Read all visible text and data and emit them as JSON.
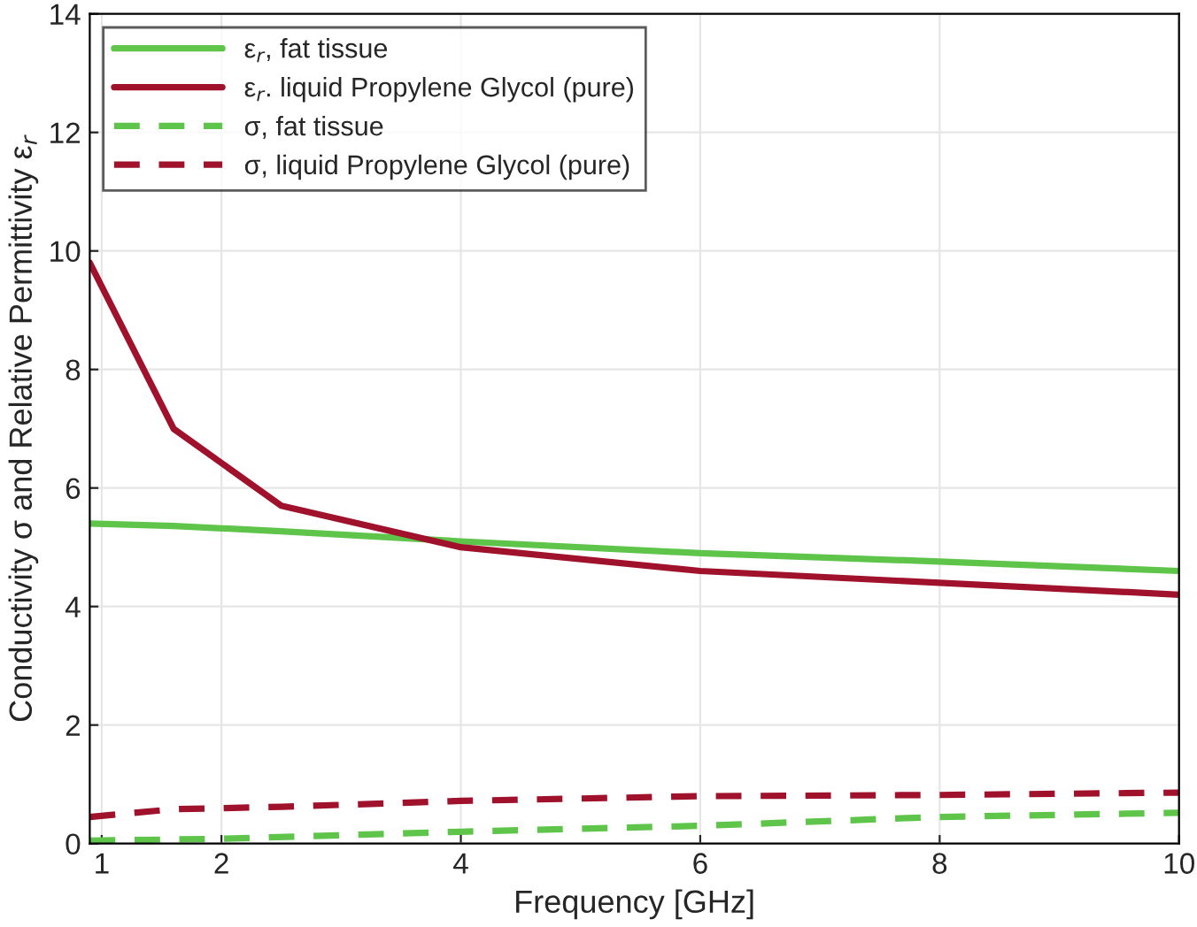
{
  "chart_data": {
    "type": "line",
    "xlabel": "Frequency [GHz]",
    "ylabel": "Conductivity σ and Relative Permittivity ε$_{r}$",
    "xlim": [
      0.9,
      10
    ],
    "xticks": [
      1,
      2,
      4,
      6,
      8,
      10
    ],
    "ylim": [
      0,
      14
    ],
    "yticks": [
      0,
      2,
      4,
      6,
      8,
      10,
      12,
      14
    ],
    "grid": true,
    "legend": "top left",
    "series": [
      {
        "name": "ε$_{r}$, fat tissue",
        "color": "#5ec44a",
        "line_style": "solid",
        "x": [
          0.9,
          1.6,
          2.5,
          4,
          6,
          8,
          10
        ],
        "values": [
          5.4,
          5.36,
          5.27,
          5.1,
          4.9,
          4.76,
          4.6
        ]
      },
      {
        "name": "ε$_{r}$. liquid Propylene Glycol (pure)",
        "color": "#a0112b",
        "line_style": "solid",
        "x": [
          0.9,
          1.6,
          2.5,
          4,
          6,
          8,
          10
        ],
        "values": [
          9.8,
          7.0,
          5.7,
          5.0,
          4.6,
          4.4,
          4.2
        ]
      },
      {
        "name": "σ, fat tissue",
        "color": "#5ec44a",
        "line_style": "dashed",
        "x": [
          0.9,
          2,
          4,
          6,
          8,
          10
        ],
        "values": [
          0.05,
          0.08,
          0.2,
          0.3,
          0.45,
          0.52
        ]
      },
      {
        "name": "σ, liquid Propylene Glycol (pure)",
        "color": "#a0112b",
        "line_style": "dashed",
        "x": [
          0.9,
          1.6,
          2.5,
          4,
          6,
          8,
          10
        ],
        "values": [
          0.45,
          0.58,
          0.62,
          0.72,
          0.8,
          0.82,
          0.86
        ]
      }
    ]
  }
}
